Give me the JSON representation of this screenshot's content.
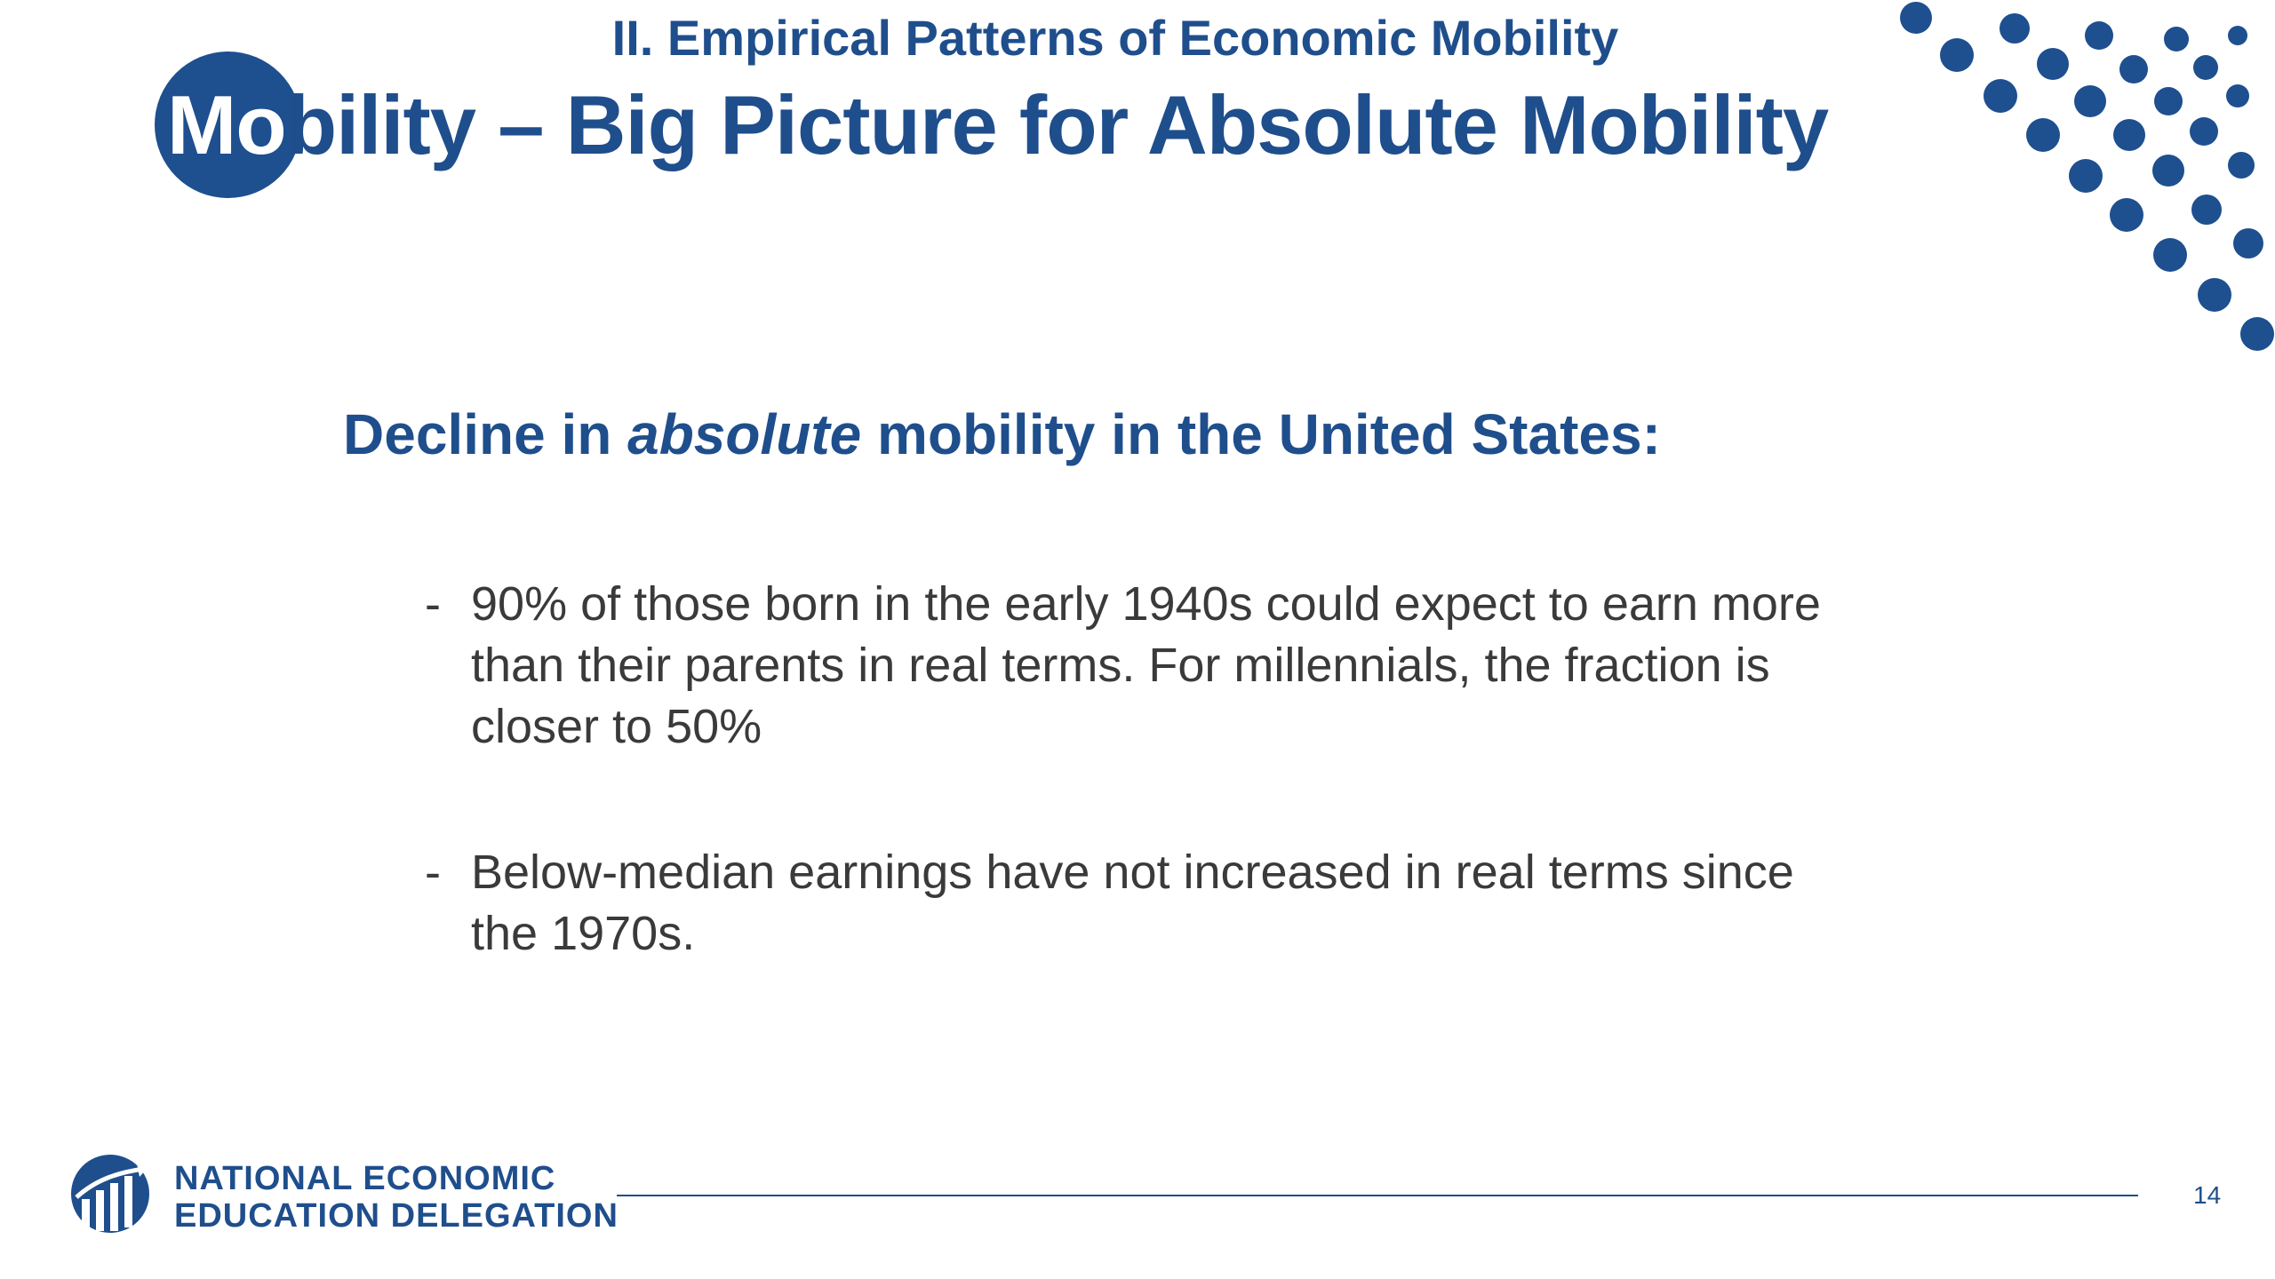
{
  "slide": {
    "kicker": "II. Empirical Patterns of Economic Mobility",
    "title_first_letters": "Mo",
    "title_rest": "bility – Big Picture for Absolute Mobility",
    "heading_pre": "Decline in ",
    "heading_em": "absolute",
    "heading_post": " mobility in the United States:",
    "bullets": [
      {
        "dash": "-",
        "text": "90% of those born in the early 1940s could expect to earn more than their parents in real terms. For millennials, the fraction is closer to 50%"
      },
      {
        "dash": "-",
        "text": "Below-median earnings have not increased in real terms since the 1970s."
      }
    ],
    "page_number": "14"
  },
  "footer": {
    "org_line1": "NATIONAL ECONOMIC",
    "org_line2": "EDUCATION DELEGATION",
    "logo_icon": "bar-chart-arrow-logo"
  },
  "colors": {
    "primary": "#1f4e8c",
    "dots": "#1e4f8f",
    "body_text": "#3a3a3a"
  },
  "decoration": {
    "dots_icon": "dot-pattern"
  }
}
